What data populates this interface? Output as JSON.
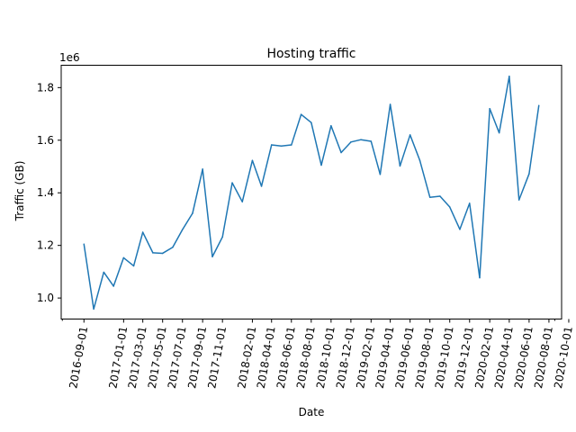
{
  "chart_data": {
    "type": "line",
    "title": "Hosting traffic",
    "xlabel": "Date",
    "ylabel": "Traffic (GB)",
    "y_offset_label": "1e6",
    "y_scale": 1000000,
    "line_color": "#1f77b4",
    "grid": false,
    "x_major_ticks": [
      "2016-09-01",
      "2017-01-01",
      "2017-03-01",
      "2017-05-01",
      "2017-07-01",
      "2017-09-01",
      "2017-11-01",
      "2018-02-01",
      "2018-04-01",
      "2018-06-01",
      "2018-08-01",
      "2018-10-01",
      "2018-12-01",
      "2019-02-01",
      "2019-04-01",
      "2019-06-01",
      "2019-08-01",
      "2019-10-01",
      "2019-12-01",
      "2020-02-01",
      "2020-04-01",
      "2020-06-01",
      "2020-08-01",
      "2020-10-01"
    ],
    "y_ticks": [
      "1.0",
      "1.2",
      "1.4",
      "1.6",
      "1.8"
    ],
    "ylim": [
      920000,
      1885000
    ],
    "series": [
      {
        "points": [
          {
            "x": "2016-09-01",
            "y": 1205000
          },
          {
            "x": "2016-10-01",
            "y": 958000
          },
          {
            "x": "2016-11-01",
            "y": 1098000
          },
          {
            "x": "2016-12-01",
            "y": 1045000
          },
          {
            "x": "2017-01-01",
            "y": 1153000
          },
          {
            "x": "2017-02-01",
            "y": 1122000
          },
          {
            "x": "2017-03-01",
            "y": 1250000
          },
          {
            "x": "2017-04-01",
            "y": 1172000
          },
          {
            "x": "2017-05-01",
            "y": 1170000
          },
          {
            "x": "2017-06-01",
            "y": 1193000
          },
          {
            "x": "2017-07-01",
            "y": 1260000
          },
          {
            "x": "2017-08-01",
            "y": 1322000
          },
          {
            "x": "2017-09-01",
            "y": 1490000
          },
          {
            "x": "2017-10-01",
            "y": 1157000
          },
          {
            "x": "2017-11-01",
            "y": 1232000
          },
          {
            "x": "2017-12-01",
            "y": 1438000
          },
          {
            "x": "2018-01-01",
            "y": 1366000
          },
          {
            "x": "2018-02-01",
            "y": 1523000
          },
          {
            "x": "2018-03-01",
            "y": 1425000
          },
          {
            "x": "2018-04-01",
            "y": 1582000
          },
          {
            "x": "2018-05-01",
            "y": 1578000
          },
          {
            "x": "2018-06-01",
            "y": 1582000
          },
          {
            "x": "2018-07-01",
            "y": 1698000
          },
          {
            "x": "2018-08-01",
            "y": 1667000
          },
          {
            "x": "2018-09-01",
            "y": 1505000
          },
          {
            "x": "2018-10-01",
            "y": 1655000
          },
          {
            "x": "2018-11-01",
            "y": 1553000
          },
          {
            "x": "2018-12-01",
            "y": 1593000
          },
          {
            "x": "2019-01-01",
            "y": 1602000
          },
          {
            "x": "2019-02-01",
            "y": 1596000
          },
          {
            "x": "2019-03-01",
            "y": 1470000
          },
          {
            "x": "2019-04-01",
            "y": 1736000
          },
          {
            "x": "2019-05-01",
            "y": 1502000
          },
          {
            "x": "2019-06-01",
            "y": 1620000
          },
          {
            "x": "2019-07-01",
            "y": 1523000
          },
          {
            "x": "2019-08-01",
            "y": 1383000
          },
          {
            "x": "2019-09-01",
            "y": 1387000
          },
          {
            "x": "2019-10-01",
            "y": 1346000
          },
          {
            "x": "2019-11-01",
            "y": 1261000
          },
          {
            "x": "2019-12-01",
            "y": 1360000
          },
          {
            "x": "2020-01-01",
            "y": 1077000
          },
          {
            "x": "2020-02-01",
            "y": 1720000
          },
          {
            "x": "2020-03-01",
            "y": 1628000
          },
          {
            "x": "2020-04-01",
            "y": 1843000
          },
          {
            "x": "2020-05-01",
            "y": 1373000
          },
          {
            "x": "2020-06-01",
            "y": 1472000
          },
          {
            "x": "2020-07-01",
            "y": 1732000
          }
        ]
      }
    ]
  }
}
